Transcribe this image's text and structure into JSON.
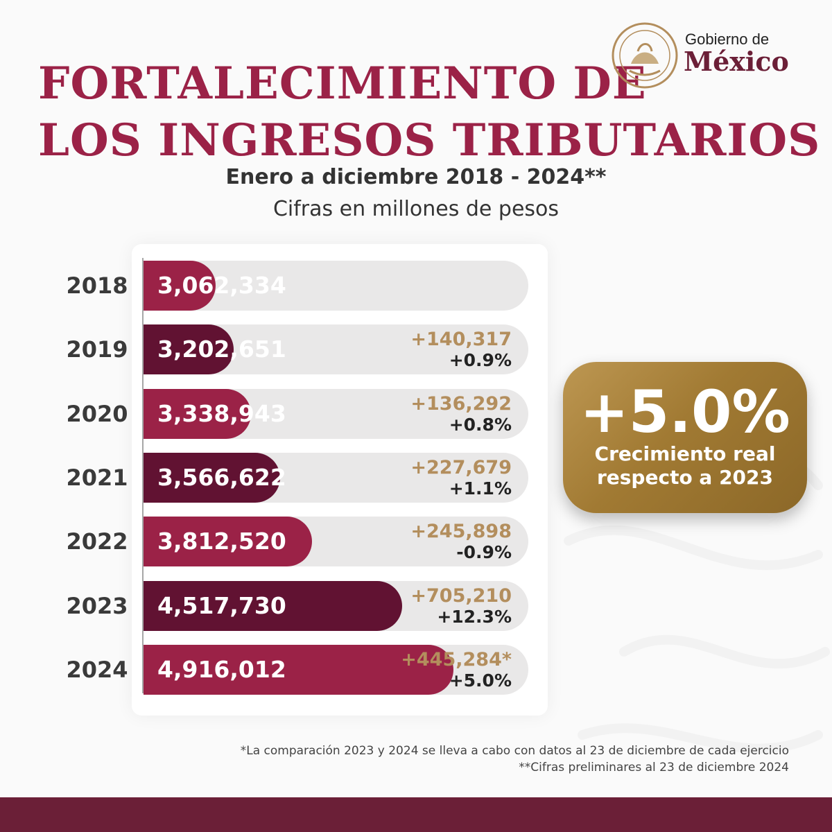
{
  "header": {
    "title_line1": "FORTALECIMIENTO DE",
    "title_line2": "LOS INGRESOS TRIBUTARIOS",
    "period": "Enero a diciembre 2018 - 2024**",
    "unit": "Cifras en millones de pesos"
  },
  "logo": {
    "line1": "Gobierno de",
    "line2": "México"
  },
  "colors": {
    "title": "#9b2247",
    "bar_light": "#9b2247",
    "bar_dark": "#611232",
    "gold": "#b38e5d",
    "track": "#e9e8e8",
    "footer": "#6b1f37"
  },
  "chart_data": {
    "type": "bar",
    "orientation": "horizontal",
    "categories": [
      "2018",
      "2019",
      "2020",
      "2021",
      "2022",
      "2023",
      "2024"
    ],
    "values": [
      3062334,
      3202651,
      3338943,
      3566622,
      3812520,
      4517730,
      4916012
    ],
    "value_labels": [
      "3,062,334",
      "3,202,651",
      "3,338,943",
      "3,566,622",
      "3,812,520",
      "4,517,730",
      "4,916,012"
    ],
    "increment_labels": [
      "",
      "+140,317",
      "+136,292",
      "+227,679",
      "+245,898",
      "+705,210",
      "+445,284*"
    ],
    "real_growth_labels": [
      "",
      "+0.9%",
      "+0.8%",
      "+1.1%",
      "-0.9%",
      "+12.3%",
      "+5.0%"
    ],
    "bar_colors": [
      "#9b2247",
      "#611232",
      "#9b2247",
      "#611232",
      "#9b2247",
      "#611232",
      "#9b2247"
    ],
    "xlim": [
      2500000,
      5500000
    ]
  },
  "badge": {
    "value": "+5.0%",
    "label_line1": "Crecimiento real",
    "label_line2": "respecto a 2023"
  },
  "notes": {
    "note1": "*La comparación 2023 y 2024 se lleva a cabo con datos al 23 de diciembre de cada ejercicio",
    "note2": "**Cifras preliminares al 23 de diciembre 2024"
  }
}
